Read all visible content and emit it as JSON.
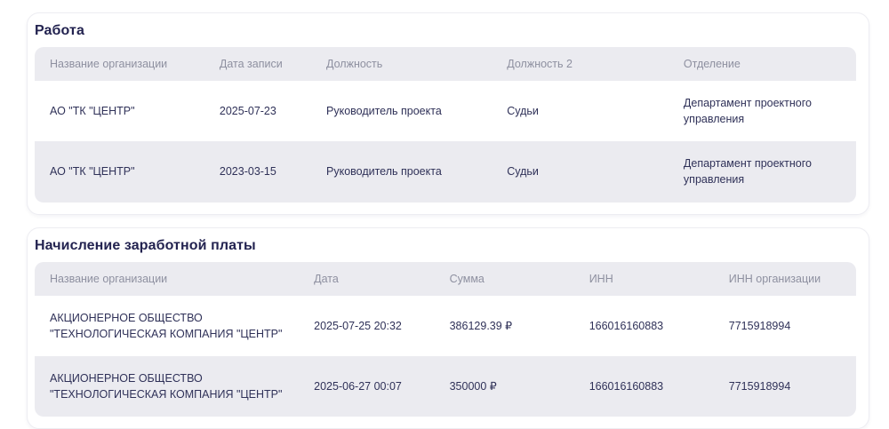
{
  "sections": [
    {
      "title": "Работа",
      "columns": [
        "Название организации",
        "Дата записи",
        "Должность",
        "Должность 2",
        "Отделение"
      ],
      "rows": [
        [
          "АО \"ТК \"ЦЕНТР\"",
          "2025-07-23",
          "Руководитель проекта",
          "Судьи",
          "Департамент проектного управления"
        ],
        [
          "АО \"ТК \"ЦЕНТР\"",
          "2023-03-15",
          "Руководитель проекта",
          "Судьи",
          "Департамент проектного управления"
        ]
      ]
    },
    {
      "title": "Начисление заработной платы",
      "columns": [
        "Название организации",
        "Дата",
        "Сумма",
        "ИНН",
        "ИНН организации"
      ],
      "rows": [
        [
          "АКЦИОНЕРНОЕ ОБЩЕСТВО \"ТЕХНОЛОГИЧЕСКАЯ КОМПАНИЯ \"ЦЕНТР\"",
          "2025-07-25 20:32",
          "386129.39 ₽",
          "166016160883",
          "7715918994"
        ],
        [
          "АКЦИОНЕРНОЕ ОБЩЕСТВО \"ТЕХНОЛОГИЧЕСКАЯ КОМПАНИЯ \"ЦЕНТР\"",
          "2025-06-27 00:07",
          "350000 ₽",
          "166016160883",
          "7715918994"
        ]
      ]
    }
  ],
  "colors": {
    "title_text": "#232350",
    "header_text": "#8e90a0",
    "cell_text": "#2f3158",
    "row_stripe": "#ebebf0",
    "card_border": "#ededf2"
  }
}
